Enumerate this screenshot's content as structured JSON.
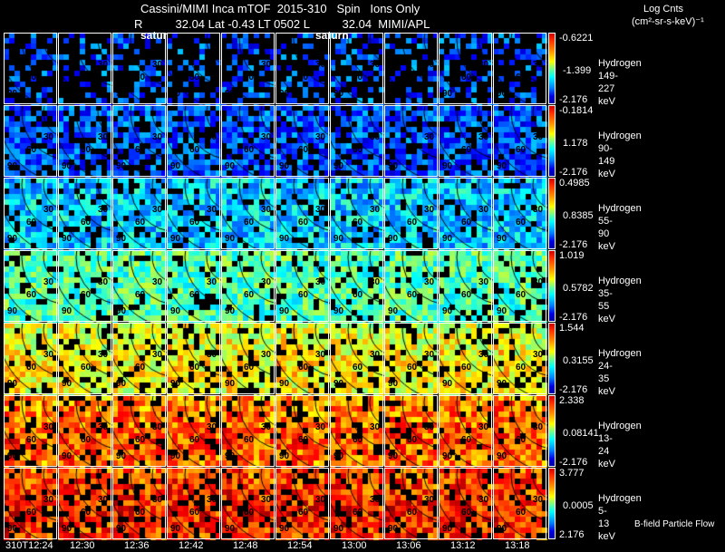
{
  "header": {
    "title": "Cassini/MIMI Inca mTOF  2015-310   Spin   Ions Only",
    "subtitle": "R          32.04 Lat -0.43 LT 0502 L          32.04  MIMI/APL",
    "overlay_label_1": "satur",
    "overlay_label_2": "saturn",
    "units_line1": "Log Cnts",
    "units_line2": "(cm²-sr-s-keV)⁻¹"
  },
  "footer": {
    "legend": "B-field Particle Flow"
  },
  "chart_data": {
    "type": "heatmap",
    "title": "Cassini/MIMI Inca mTOF  2015-310   Spin   Ions Only",
    "colorscale": "jet",
    "angle_labels": [
      "30",
      "60",
      "90"
    ],
    "columns": [
      "310T12:24",
      "12:30",
      "12:36",
      "12:42",
      "12:48",
      "12:54",
      "13:00",
      "13:06",
      "13:12",
      "13:18"
    ],
    "rows": [
      {
        "species": "Hydrogen",
        "energy": "149-227 keV",
        "cb_max": "-0.6221",
        "cb_mid": "-1.399",
        "cb_min": "-2.176",
        "level": 0.2,
        "fill": 0.35
      },
      {
        "species": "Hydrogen",
        "energy": "90-149 keV",
        "cb_max": "-0.1814",
        "cb_mid": "1.178",
        "cb_min": "-2.176",
        "level": 0.2,
        "fill": 0.75
      },
      {
        "species": "Hydrogen",
        "energy": "55-90 keV",
        "cb_max": "0.4985",
        "cb_mid": "0.8385",
        "cb_min": "-2.176",
        "level": 0.33,
        "fill": 0.85
      },
      {
        "species": "Hydrogen",
        "energy": "35-55 keV",
        "cb_max": "1.019",
        "cb_mid": "0.5782",
        "cb_min": "-2.176",
        "level": 0.45,
        "fill": 0.85
      },
      {
        "species": "Hydrogen",
        "energy": "24-35 keV",
        "cb_max": "1.544",
        "cb_mid": "0.3155",
        "cb_min": "-2.176",
        "level": 0.55,
        "fill": 0.82
      },
      {
        "species": "Hydrogen",
        "energy": "13-24 keV",
        "cb_max": "2.338",
        "cb_mid": "0.08141",
        "cb_min": "-2.176",
        "level": 0.7,
        "fill": 0.85
      },
      {
        "species": "Hydrogen",
        "energy": "5-13 keV",
        "cb_max": "3.777",
        "cb_mid": "0.0005",
        "cb_min": "2.176",
        "level": 0.76,
        "fill": 0.8
      }
    ]
  }
}
